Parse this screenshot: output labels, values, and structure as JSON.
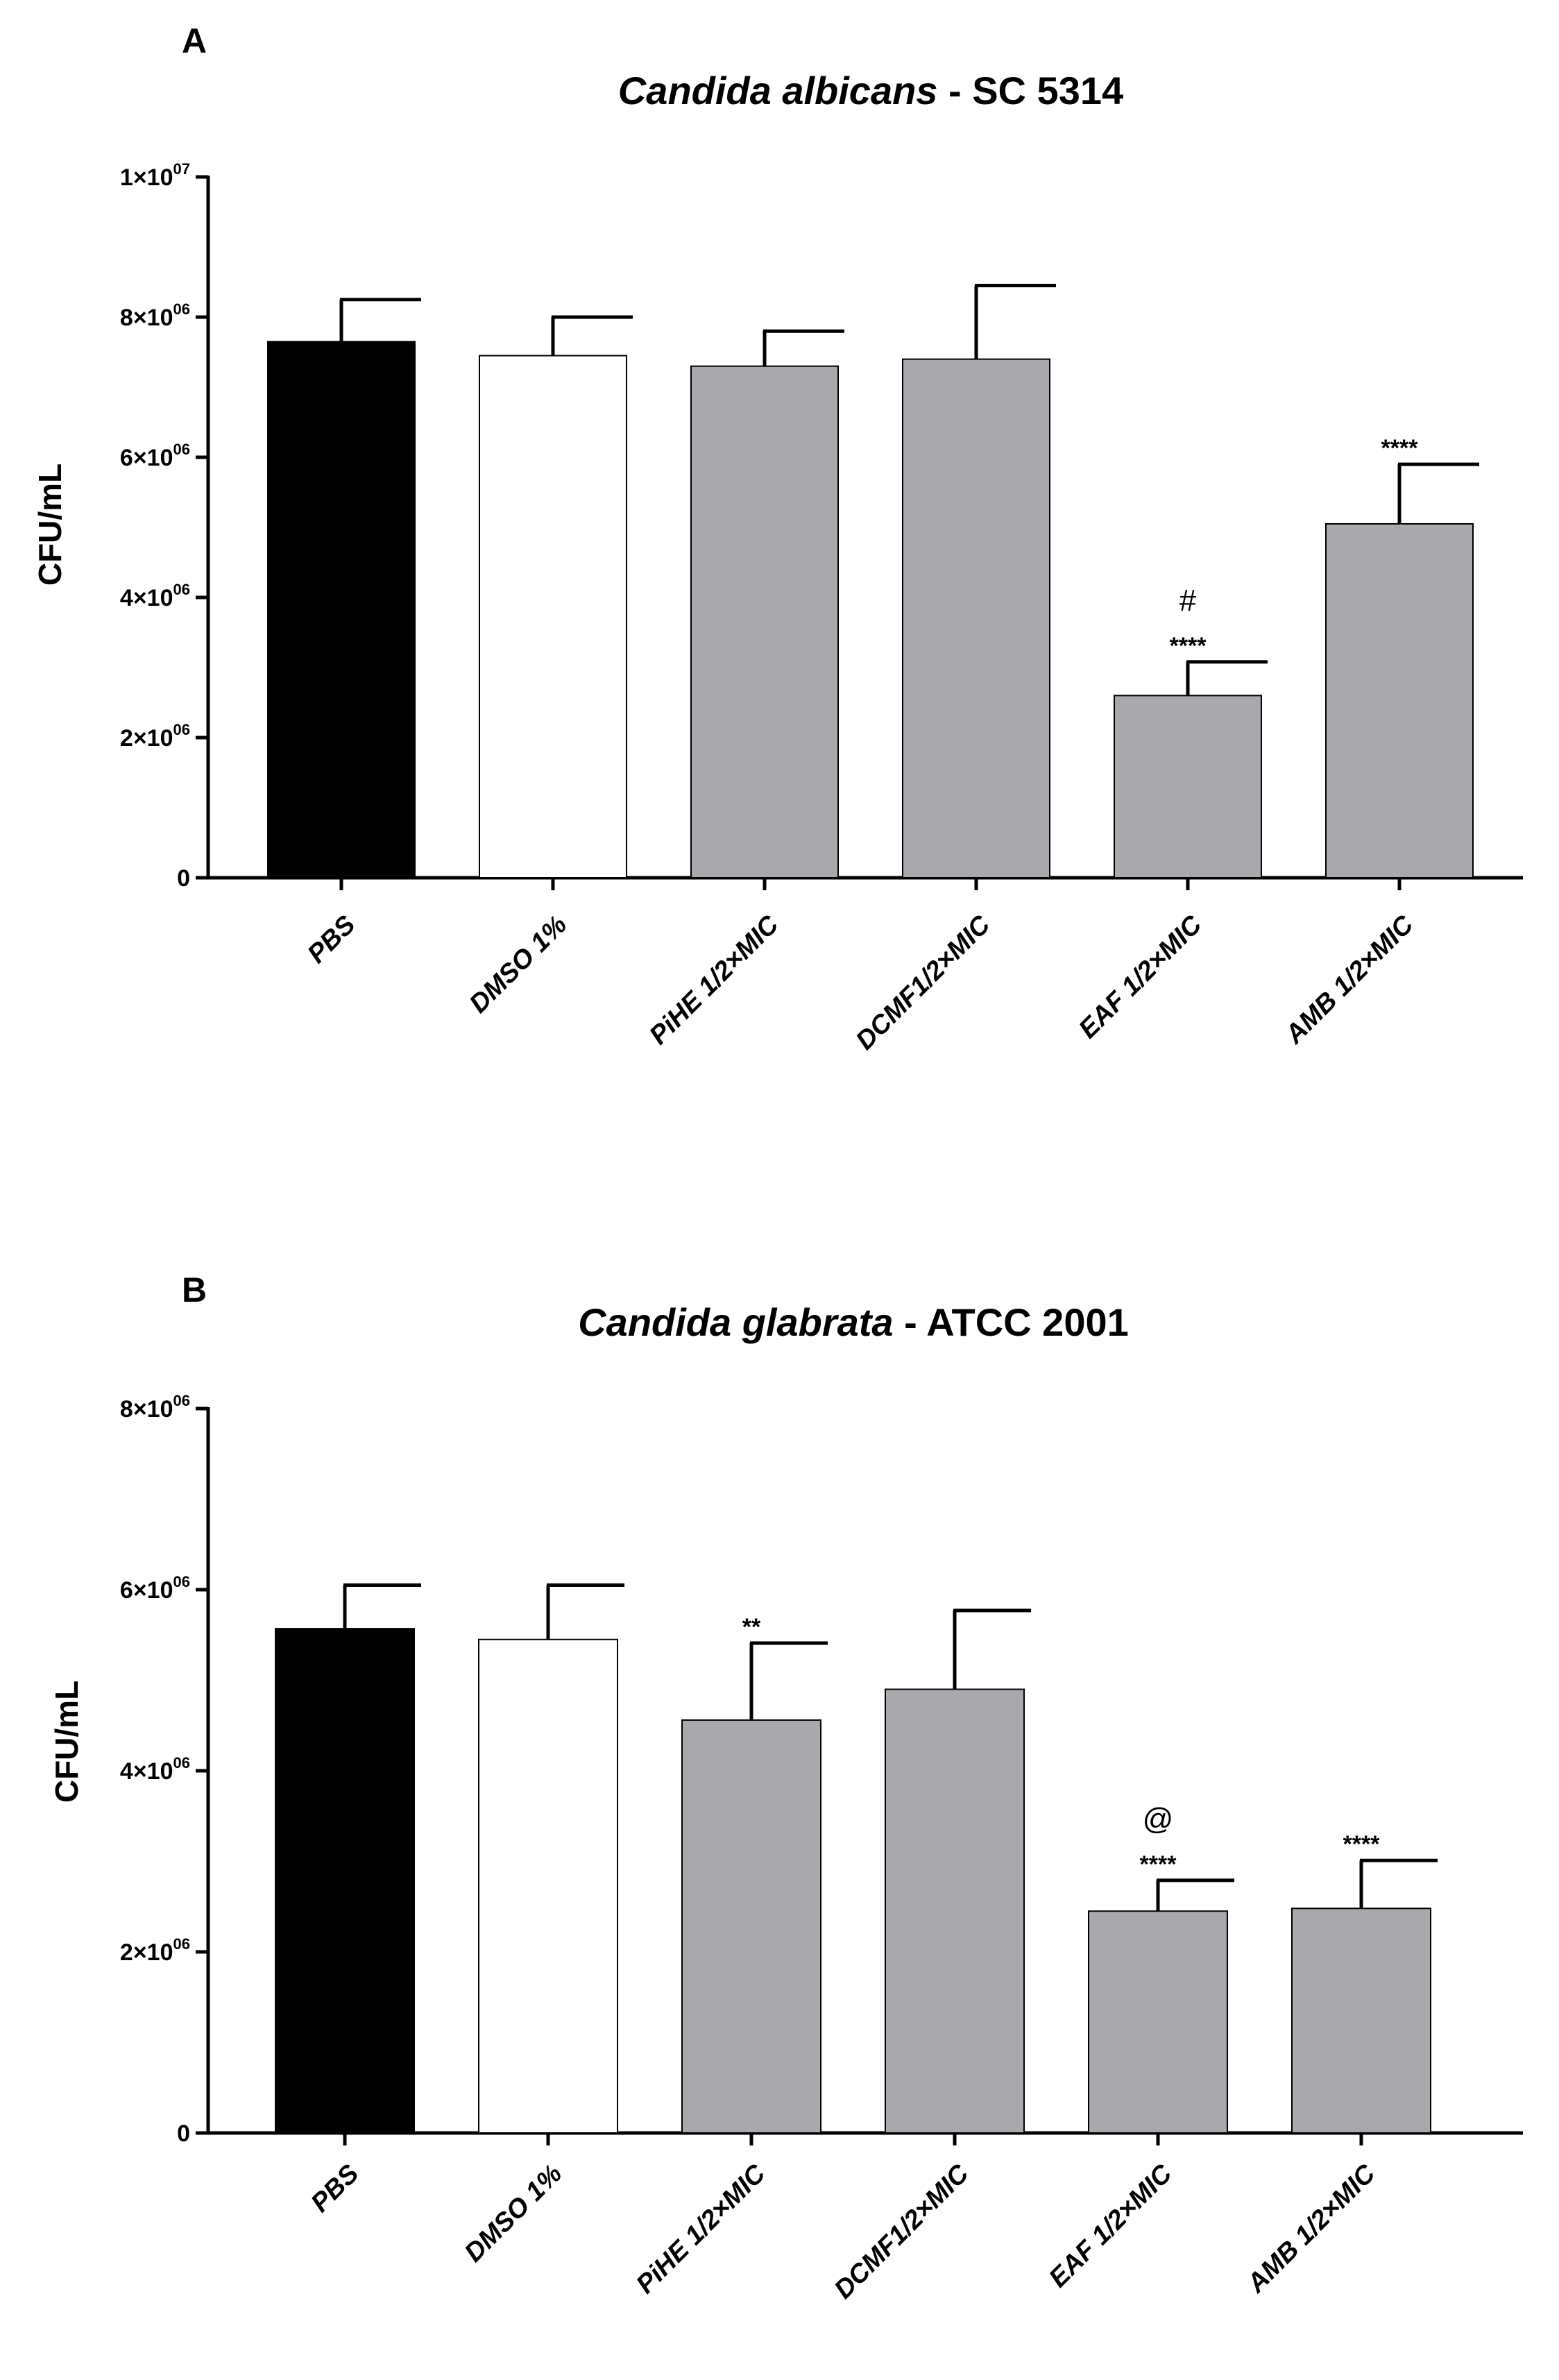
{
  "chart_data": [
    {
      "type": "bar",
      "panel": "A",
      "title_italic": "Candida albicans",
      "title_rest": " - SC 5314",
      "ylabel": "CFU/mL",
      "ylim": [
        0,
        10000000
      ],
      "yticks": [
        {
          "value": 0,
          "mant": "0",
          "exp": ""
        },
        {
          "value": 2000000,
          "mant": "2×10",
          "exp": "06"
        },
        {
          "value": 4000000,
          "mant": "4×10",
          "exp": "06"
        },
        {
          "value": 6000000,
          "mant": "6×10",
          "exp": "06"
        },
        {
          "value": 8000000,
          "mant": "8×10",
          "exp": "06"
        },
        {
          "value": 10000000,
          "mant": "1×10",
          "exp": "07"
        }
      ],
      "categories": [
        "PBS",
        "DMSO 1%",
        "PiHE 1/2×MIC",
        "DCMF1/2×MIC",
        "EAF 1/2×MIC",
        "AMB 1/2×MIC"
      ],
      "values": [
        7650000,
        7450000,
        7300000,
        7400000,
        2600000,
        5050000
      ],
      "errors": [
        600000,
        550000,
        500000,
        1050000,
        480000,
        850000
      ],
      "colors": [
        "#000000",
        "#ffffff",
        "#a9a8ad",
        "#a9a8ad",
        "#a9a8ad",
        "#a9a8ad"
      ],
      "annotations": [
        {
          "index": 4,
          "marks": [
            "****",
            "#"
          ]
        },
        {
          "index": 5,
          "marks": [
            "****"
          ]
        }
      ],
      "grid": false
    },
    {
      "type": "bar",
      "panel": "B",
      "title_italic": "Candida glabrata",
      "title_rest": " - ATCC 2001",
      "ylabel": "CFU/mL",
      "ylim": [
        0,
        8000000
      ],
      "yticks": [
        {
          "value": 0,
          "mant": "0",
          "exp": ""
        },
        {
          "value": 2000000,
          "mant": "2×10",
          "exp": "06"
        },
        {
          "value": 4000000,
          "mant": "4×10",
          "exp": "06"
        },
        {
          "value": 6000000,
          "mant": "6×10",
          "exp": "06"
        },
        {
          "value": 8000000,
          "mant": "8×10",
          "exp": "06"
        }
      ],
      "categories": [
        "PBS",
        "DMSO 1%",
        "PiHE 1/2×MIC",
        "DCMF1/2×MIC",
        "EAF 1/2×MIC",
        "AMB 1/2×MIC"
      ],
      "values": [
        5570000,
        5450000,
        4560000,
        4900000,
        2450000,
        2480000
      ],
      "errors": [
        480000,
        600000,
        850000,
        870000,
        340000,
        530000
      ],
      "colors": [
        "#000000",
        "#ffffff",
        "#a9a8ad",
        "#a9a8ad",
        "#a9a8ad",
        "#a9a8ad"
      ],
      "annotations": [
        {
          "index": 2,
          "marks": [
            "**"
          ]
        },
        {
          "index": 4,
          "marks": [
            "****",
            "@"
          ]
        },
        {
          "index": 5,
          "marks": [
            "****"
          ]
        }
      ],
      "grid": false
    }
  ]
}
